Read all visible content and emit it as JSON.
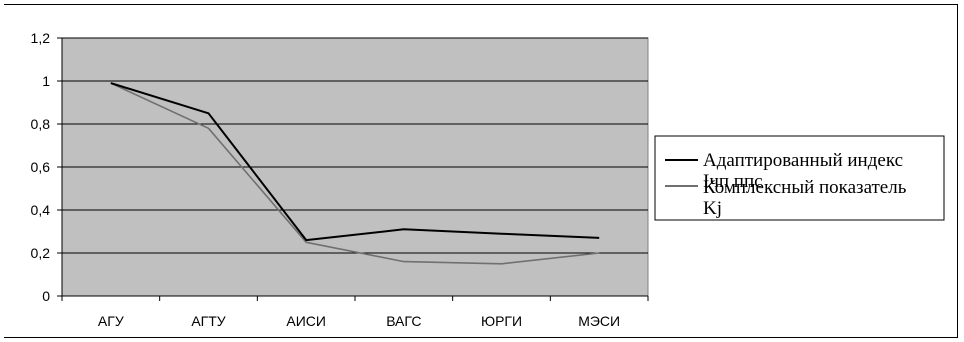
{
  "chart_data": {
    "type": "line",
    "categories": [
      "АГУ",
      "АГТУ",
      "АИСИ",
      "ВАГС",
      "ЮРГИ",
      "МЭСИ"
    ],
    "ylim": [
      0,
      1.2
    ],
    "yticks": [
      "0",
      "0,2",
      "0,4",
      "0,6",
      "0,8",
      "1",
      "1,2"
    ],
    "ytick_values": [
      0,
      0.2,
      0.4,
      0.6,
      0.8,
      1.0,
      1.2
    ],
    "grid": true,
    "legend_position": "right",
    "plot_background": "#c0c0c0",
    "series": [
      {
        "name_line1": "Адаптированный индекс",
        "name_line2": "Iчп ппс",
        "color": "#000000",
        "values": [
          0.99,
          0.85,
          0.26,
          0.31,
          0.29,
          0.27
        ]
      },
      {
        "name_line1": "Комплексный показатель",
        "name_line2": "Kj",
        "color": "#707070",
        "values": [
          0.99,
          0.78,
          0.25,
          0.16,
          0.15,
          0.2
        ]
      }
    ]
  }
}
